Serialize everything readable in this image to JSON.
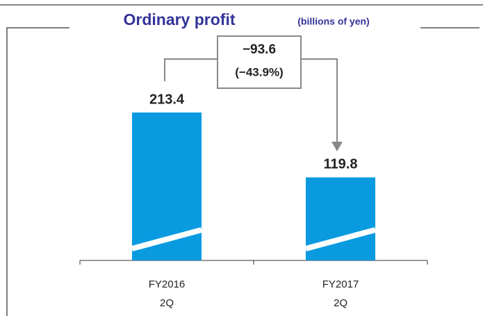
{
  "chart_data": {
    "type": "bar",
    "title": "Ordinary profit",
    "subtitle": "(billions of yen)",
    "categories": [
      "FY2016 2Q",
      "FY2017 2Q"
    ],
    "values": [
      213.4,
      119.8
    ],
    "color": "#0a9ae0",
    "annotations": [
      "−93.6",
      "(−43.9%)"
    ]
  }
}
